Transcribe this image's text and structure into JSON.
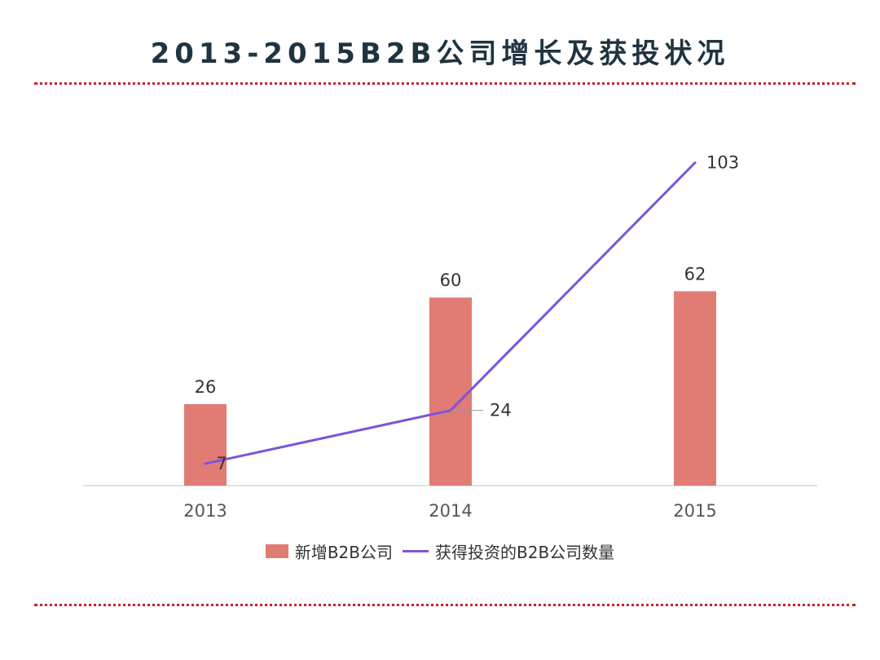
{
  "title": "2013-2015B2B公司增长及获投状况",
  "colors": {
    "bar": "#e07c74",
    "line": "#7b55db",
    "title": "#1f3441",
    "divider": "#c8222b"
  },
  "chart_data": {
    "type": "bar",
    "categories": [
      "2013",
      "2014",
      "2015"
    ],
    "series": [
      {
        "name": "新增B2B公司",
        "type": "bar",
        "values": [
          26,
          60,
          62
        ]
      },
      {
        "name": "获得投资的B2B公司数量",
        "type": "line",
        "values": [
          7,
          24,
          103
        ]
      }
    ],
    "ylim": [
      0,
      105
    ],
    "grid": false,
    "legend_position": "bottom"
  },
  "legend": {
    "bar_label": "新增B2B公司",
    "line_label": "获得投资的B2B公司数量"
  }
}
